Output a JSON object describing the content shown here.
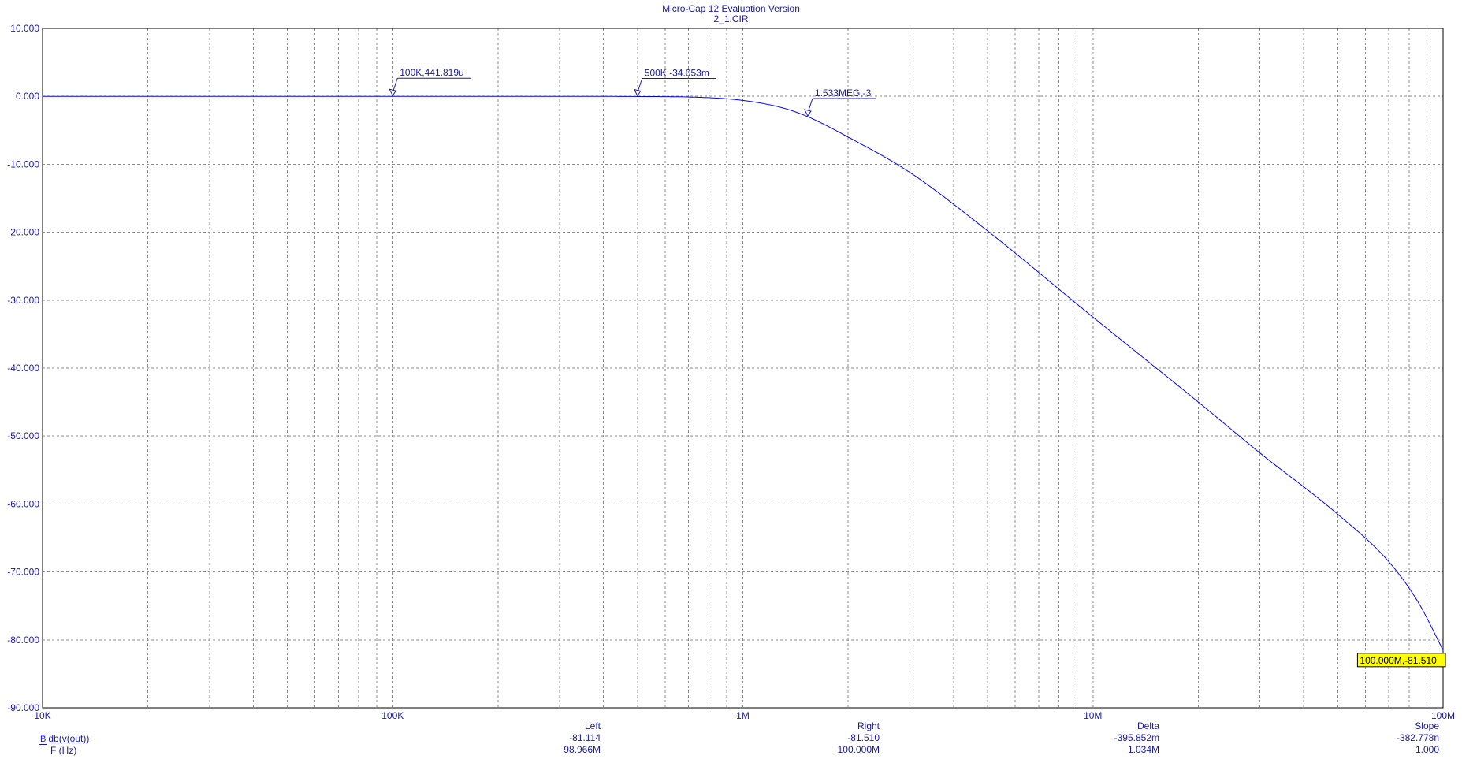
{
  "header": {
    "title": "Micro-Cap 12 Evaluation Version",
    "file": "2_1.CIR"
  },
  "colors": {
    "trace": "#0000ff",
    "text": "#1a1aa6",
    "grid": "#8c8c8c",
    "tag_bg": "#ffff00"
  },
  "chart_data": {
    "type": "line",
    "x_scale": "log",
    "y_scale": "linear",
    "xlim": [
      10000,
      100000000
    ],
    "ylim": [
      -90,
      10
    ],
    "grid": true,
    "x_ticks": [
      {
        "value": 10000,
        "label": "10K"
      },
      {
        "value": 100000,
        "label": "100K"
      },
      {
        "value": 1000000,
        "label": "1M"
      },
      {
        "value": 10000000,
        "label": "10M"
      },
      {
        "value": 100000000,
        "label": "100M"
      }
    ],
    "y_ticks": [
      {
        "value": 10,
        "label": "10.000"
      },
      {
        "value": 0,
        "label": "0.000"
      },
      {
        "value": -10,
        "label": "-10.000"
      },
      {
        "value": -20,
        "label": "-20.000"
      },
      {
        "value": -30,
        "label": "-30.000"
      },
      {
        "value": -40,
        "label": "-40.000"
      },
      {
        "value": -50,
        "label": "-50.000"
      },
      {
        "value": -60,
        "label": "-60.000"
      },
      {
        "value": -70,
        "label": "-70.000"
      },
      {
        "value": -80,
        "label": "-80.000"
      },
      {
        "value": -90,
        "label": "-90.000"
      }
    ],
    "series": [
      {
        "name": "db(v(out))",
        "x": [
          10000,
          100000,
          300000,
          500000,
          700000,
          1000000,
          1300000,
          1533000,
          2000000,
          3000000,
          5000000,
          10000000,
          20000000,
          30000000,
          50000000,
          70000000,
          85000000,
          100000000
        ],
        "y": [
          0,
          0,
          0,
          -0.03,
          -0.1,
          -0.6,
          -1.7,
          -3,
          -6,
          -11.2,
          -19.8,
          -32.5,
          -45,
          -52.5,
          -61.5,
          -68.5,
          -74.5,
          -81.51
        ]
      }
    ],
    "annotations": [
      {
        "x": 100000,
        "y": 0.000441819,
        "text": "100K,441.819u"
      },
      {
        "x": 500000,
        "y": -0.034053,
        "text": "500K,-34.053m"
      },
      {
        "x": 1533000,
        "y": -3,
        "text": "1.533MEG,-3"
      }
    ],
    "cursor_tag": {
      "x": 100000000,
      "y": -81.51,
      "text": "100.000M,-81.510"
    }
  },
  "legend": {
    "box_label": "B",
    "y_expr": "db(v(out))",
    "x_expr": "F (Hz)"
  },
  "stats": [
    {
      "header": "Left",
      "y": "-81.114",
      "x": "98.966M"
    },
    {
      "header": "Right",
      "y": "-81.510",
      "x": "100.000M"
    },
    {
      "header": "Delta",
      "y": "-395.852m",
      "x": "1.034M"
    },
    {
      "header": "Slope",
      "y": "-382.778n",
      "x": "1.000"
    }
  ]
}
